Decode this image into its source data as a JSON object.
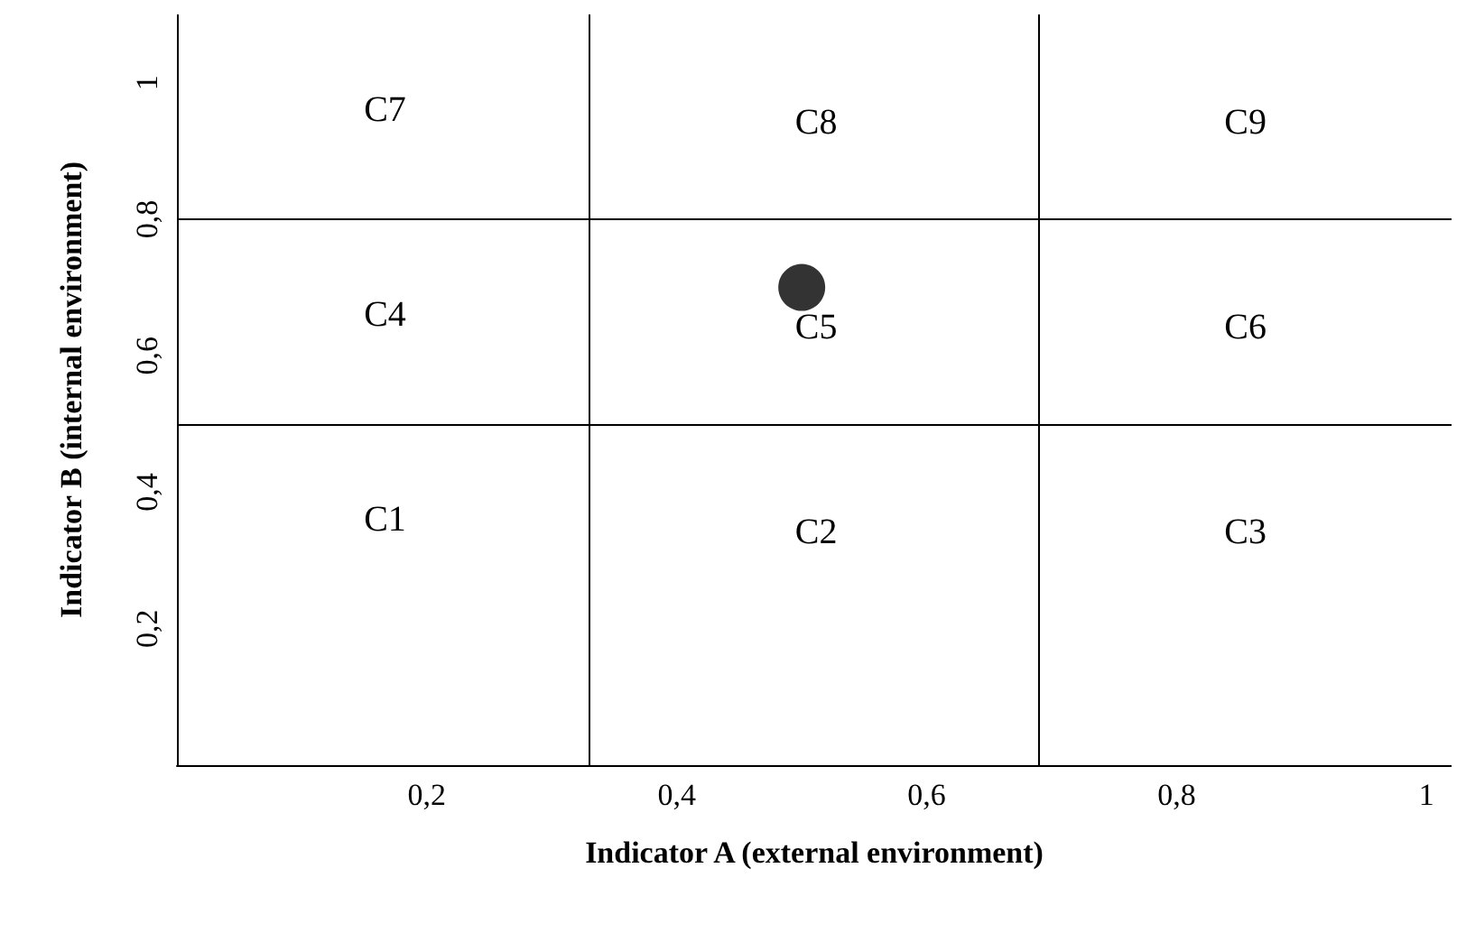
{
  "chart_data": {
    "type": "scatter",
    "xlabel": "Indicator A (external environment)",
    "ylabel": "Indicator B (internal environment)",
    "x": [
      0.5
    ],
    "values": [
      0.7
    ],
    "color": "#000000",
    "marker": "circle",
    "xlim": [
      0,
      1.02
    ],
    "ylim": [
      0,
      1.1
    ],
    "xticks": [
      {
        "value": 0.2,
        "label": "0,2"
      },
      {
        "value": 0.4,
        "label": "0,4"
      },
      {
        "value": 0.6,
        "label": "0,6"
      },
      {
        "value": 0.8,
        "label": "0,8"
      },
      1
    ],
    "yticks": [
      {
        "value": 0.2,
        "label": "0,2"
      },
      {
        "value": 0.4,
        "label": "0,4"
      },
      {
        "value": 0.6,
        "label": "0,6"
      },
      {
        "value": 0.8,
        "label": "0,8"
      },
      1
    ],
    "grid": false,
    "ref_lines": [
      {
        "axis": "x",
        "value": 0.333,
        "color": "#000000"
      },
      {
        "axis": "x",
        "value": 0.69,
        "color": "#000000"
      },
      {
        "axis": "y",
        "value": 0.5,
        "color": "#000000"
      },
      {
        "axis": "y",
        "value": 0.8,
        "color": "#000000"
      }
    ],
    "annotations": [
      "C1",
      "C2",
      "C3",
      "C4",
      "C5",
      "C6",
      "C7",
      "C8",
      "C9"
    ]
  }
}
